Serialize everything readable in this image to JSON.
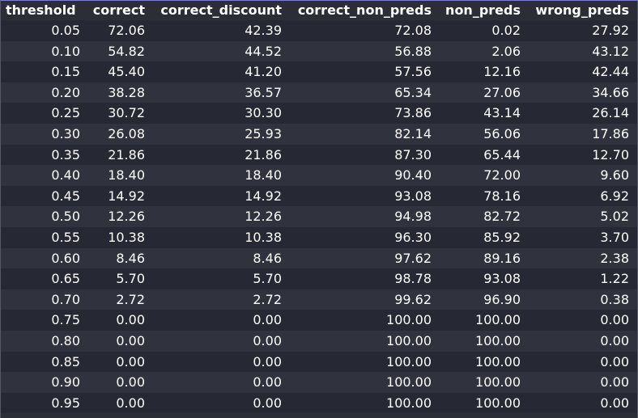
{
  "table": {
    "columns": [
      "threshold",
      "correct",
      "correct_discount",
      "correct_non_preds",
      "non_preds",
      "wrong_preds"
    ],
    "rows": [
      [
        "0.05",
        "72.06",
        "42.39",
        "72.08",
        "0.02",
        "27.92"
      ],
      [
        "0.10",
        "54.82",
        "44.52",
        "56.88",
        "2.06",
        "43.12"
      ],
      [
        "0.15",
        "45.40",
        "41.20",
        "57.56",
        "12.16",
        "42.44"
      ],
      [
        "0.20",
        "38.28",
        "36.57",
        "65.34",
        "27.06",
        "34.66"
      ],
      [
        "0.25",
        "30.72",
        "30.30",
        "73.86",
        "43.14",
        "26.14"
      ],
      [
        "0.30",
        "26.08",
        "25.93",
        "82.14",
        "56.06",
        "17.86"
      ],
      [
        "0.35",
        "21.86",
        "21.86",
        "87.30",
        "65.44",
        "12.70"
      ],
      [
        "0.40",
        "18.40",
        "18.40",
        "90.40",
        "72.00",
        "9.60"
      ],
      [
        "0.45",
        "14.92",
        "14.92",
        "93.08",
        "78.16",
        "6.92"
      ],
      [
        "0.50",
        "12.26",
        "12.26",
        "94.98",
        "82.72",
        "5.02"
      ],
      [
        "0.55",
        "10.38",
        "10.38",
        "96.30",
        "85.92",
        "3.70"
      ],
      [
        "0.60",
        "8.46",
        "8.46",
        "97.62",
        "89.16",
        "2.38"
      ],
      [
        "0.65",
        "5.70",
        "5.70",
        "98.78",
        "93.08",
        "1.22"
      ],
      [
        "0.70",
        "2.72",
        "2.72",
        "99.62",
        "96.90",
        "0.38"
      ],
      [
        "0.75",
        "0.00",
        "0.00",
        "100.00",
        "100.00",
        "0.00"
      ],
      [
        "0.80",
        "0.00",
        "0.00",
        "100.00",
        "100.00",
        "0.00"
      ],
      [
        "0.85",
        "0.00",
        "0.00",
        "100.00",
        "100.00",
        "0.00"
      ],
      [
        "0.90",
        "0.00",
        "0.00",
        "100.00",
        "100.00",
        "0.00"
      ],
      [
        "0.95",
        "0.00",
        "0.00",
        "100.00",
        "100.00",
        "0.00"
      ]
    ]
  },
  "colors": {
    "background": "#2b2d37",
    "row_odd": "#262833",
    "row_even": "#30323d",
    "text": "#ffffff",
    "top_border": "#7f7fd0"
  }
}
